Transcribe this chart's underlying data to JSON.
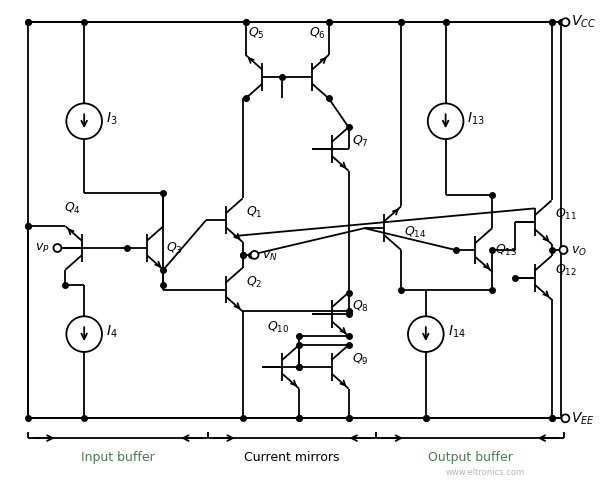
{
  "background_color": "#ffffff",
  "line_color": "#000000",
  "label_color_input": "#4a7c59",
  "label_color_output": "#4a7c59",
  "label_color_current": "#000000",
  "vcc_label": "$V_{CC}$",
  "vee_label": "$V_{EE}$",
  "watermark": "www.eltronics.com"
}
